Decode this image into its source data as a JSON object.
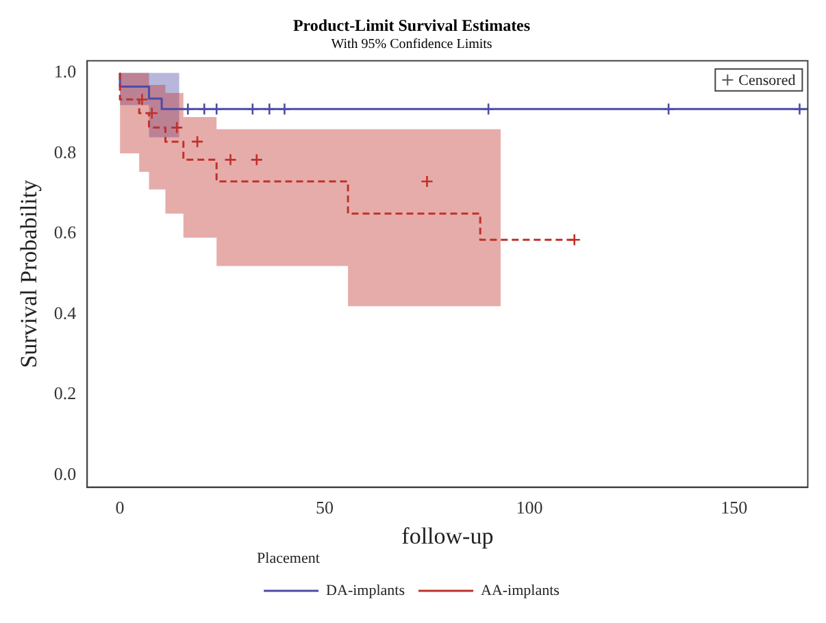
{
  "chart_data": {
    "type": "step",
    "title": "Product-Limit Survival Estimates",
    "subtitle": "With 95% Confidence Limits",
    "xlabel": "follow-up",
    "ylabel": "Survival Probability",
    "legend_title": "Placement",
    "legend": "bottom",
    "grid": false,
    "xlim": [
      -8,
      168
    ],
    "xticks": [
      0,
      50,
      100,
      150
    ],
    "ylim": [
      -0.03,
      1.03
    ],
    "yticks": [
      {
        "value": 0,
        "label": "0.0"
      },
      {
        "value": 0.2,
        "label": "0.2"
      },
      {
        "value": 0.4,
        "label": "0.4"
      },
      {
        "value": 0.6,
        "label": "0.6"
      },
      {
        "value": 0.8,
        "label": "0.8"
      },
      {
        "value": 1,
        "label": "1.0"
      }
    ],
    "series": [
      {
        "name": "DA-implants",
        "color": "#4b4ba8",
        "line_style": "solid",
        "x": [
          0,
          7.1,
          10.2,
          14.5,
          168
        ],
        "values": [
          1,
          0.966,
          0.936,
          0.91,
          0.91
        ],
        "lower": [
          1,
          0.92,
          0.84,
          0.84,
          null
        ],
        "upper": [
          1,
          1,
          1,
          1,
          null
        ]
      },
      {
        "name": "AA-implants",
        "color": "#c0302a",
        "line_style": "dashed",
        "x": [
          0,
          4.7,
          7.1,
          11.1,
          15.5,
          23.6,
          55.7,
          88,
          93,
          111
        ],
        "values": [
          1,
          0.934,
          0.9,
          0.864,
          0.829,
          0.784,
          0.73,
          0.65,
          0.585,
          0.585
        ],
        "lower": [
          1,
          0.8,
          0.754,
          0.71,
          0.65,
          0.59,
          0.52,
          0.42,
          0.42,
          null
        ],
        "upper": [
          1,
          1,
          1,
          0.97,
          0.95,
          0.89,
          0.86,
          0.86,
          0.86,
          null
        ]
      },
      {
        "name": "Censored",
        "type": "scatter",
        "marker": "cross",
        "x": [
          16.6,
          20.6,
          23.6,
          32.4,
          36.5,
          40.2,
          90,
          134,
          166,
          5.4,
          7.8,
          13.9,
          18.9,
          27,
          33.4,
          75,
          111
        ],
        "values": [
          0.91,
          0.91,
          0.91,
          0.91,
          0.91,
          0.91,
          0.91,
          0.91,
          0.91,
          0.934,
          0.9,
          0.864,
          0.829,
          0.784,
          0.784,
          0.73,
          0.585
        ],
        "colors": [
          "#4b4ba8",
          "#4b4ba8",
          "#4b4ba8",
          "#4b4ba8",
          "#4b4ba8",
          "#4b4ba8",
          "#4b4ba8",
          "#4b4ba8",
          "#4b4ba8",
          "#c0302a",
          "#c0302a",
          "#c0302a",
          "#c0302a",
          "#c0302a",
          "#c0302a",
          "#c0302a",
          "#c0302a"
        ]
      }
    ]
  }
}
